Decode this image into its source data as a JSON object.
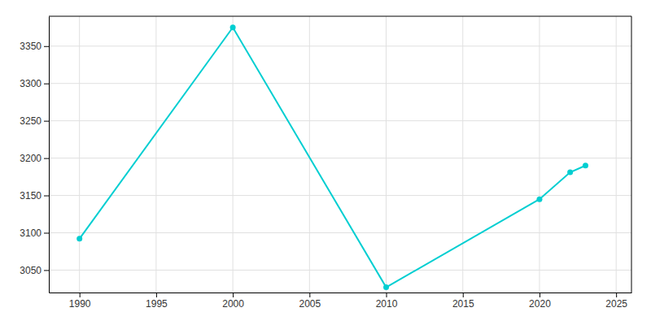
{
  "chart_data": {
    "type": "line",
    "x": [
      1990,
      2000,
      2010,
      2020,
      2022,
      2023
    ],
    "values": [
      3092,
      3375,
      3027,
      3145,
      3181,
      3190
    ],
    "color": "#00CED1",
    "marker": "circle",
    "xlim": [
      1988,
      2026
    ],
    "ylim": [
      3020,
      3390
    ],
    "xticks": [
      1990,
      1995,
      2000,
      2005,
      2010,
      2015,
      2020,
      2025
    ],
    "yticks": [
      3050,
      3100,
      3150,
      3200,
      3250,
      3300,
      3350
    ],
    "grid": true
  }
}
